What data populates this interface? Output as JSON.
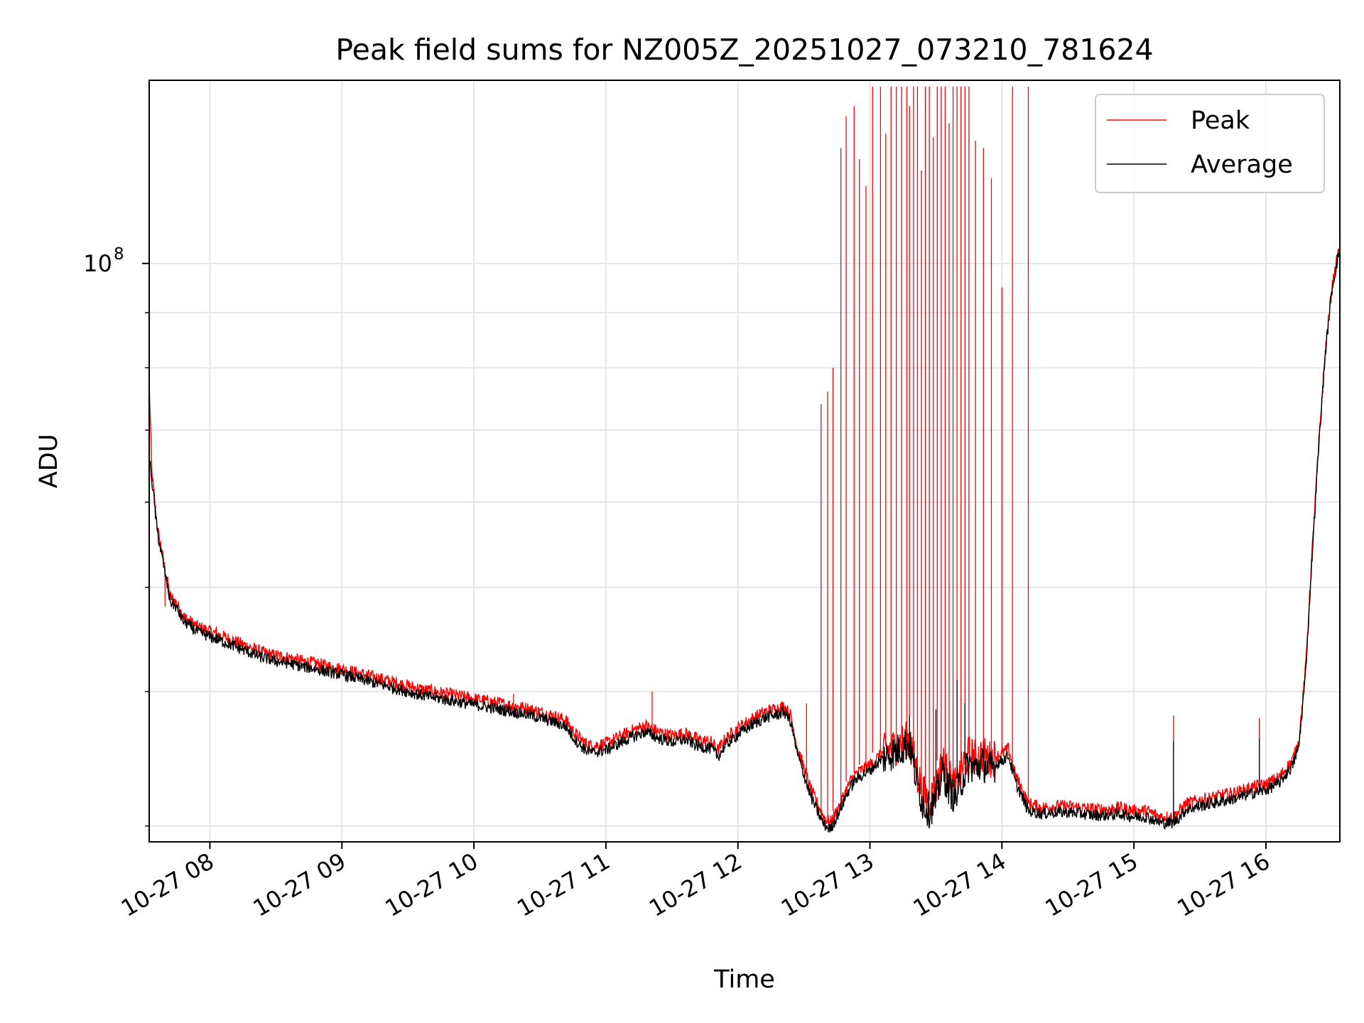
{
  "chart_data": {
    "type": "line",
    "title": "Peak field sums for NZ005Z_20251027_073210_781624",
    "xlabel": "Time",
    "ylabel": "ADU",
    "yscale": "log",
    "grid": true,
    "legend_position": "top-right",
    "x_unit": "hours since 2025-10-27 00:00",
    "xlim": [
      7.54,
      16.56
    ],
    "ylim": [
      29000000,
      148000000
    ],
    "x_ticks": [
      {
        "value": 8,
        "label": "10-27 08"
      },
      {
        "value": 9,
        "label": "10-27 09"
      },
      {
        "value": 10,
        "label": "10-27 10"
      },
      {
        "value": 11,
        "label": "10-27 11"
      },
      {
        "value": 12,
        "label": "10-27 12"
      },
      {
        "value": 13,
        "label": "10-27 13"
      },
      {
        "value": 14,
        "label": "10-27 14"
      },
      {
        "value": 15,
        "label": "10-27 15"
      },
      {
        "value": 16,
        "label": "10-27 16"
      }
    ],
    "y_major_tick": {
      "value": 100000000,
      "label_base": "10",
      "label_exp": "8"
    },
    "y_minor_ticks": [
      30000000,
      40000000,
      50000000,
      60000000,
      70000000,
      80000000,
      90000000
    ],
    "series": [
      {
        "name": "Peak",
        "color": "#ff0000",
        "x": [
          7.54,
          7.56,
          7.6,
          7.66,
          7.7,
          7.74,
          7.8,
          7.9,
          8.0,
          8.1,
          8.2,
          8.3,
          8.4,
          8.5,
          8.6,
          8.7,
          8.8,
          8.9,
          9.0,
          9.1,
          9.2,
          9.3,
          9.4,
          9.5,
          9.6,
          9.7,
          9.8,
          9.9,
          10.0,
          10.1,
          10.2,
          10.3,
          10.4,
          10.5,
          10.6,
          10.7,
          10.75,
          10.8,
          10.85,
          10.9,
          11.0,
          11.1,
          11.2,
          11.3,
          11.4,
          11.5,
          11.6,
          11.7,
          11.8,
          11.85,
          11.9,
          12.0,
          12.1,
          12.2,
          12.3,
          12.35,
          12.4,
          12.45,
          12.5,
          12.55,
          12.6,
          12.65,
          12.7,
          12.75,
          12.8,
          12.85,
          12.9,
          13.0,
          13.1,
          13.2,
          13.3,
          13.35,
          13.4,
          13.45,
          13.5,
          13.55,
          13.6,
          13.65,
          13.7,
          13.75,
          13.8,
          13.85,
          13.9,
          14.0,
          14.05,
          14.1,
          14.2,
          14.3,
          14.4,
          14.5,
          14.6,
          14.7,
          14.8,
          14.9,
          15.0,
          15.1,
          15.2,
          15.3,
          15.4,
          15.5,
          15.6,
          15.7,
          15.8,
          15.9,
          16.0,
          16.1,
          16.2,
          16.25,
          16.3,
          16.35,
          16.4,
          16.45,
          16.5,
          16.56
        ],
        "y": [
          78000000,
          64000000,
          57000000,
          52000000,
          49000000,
          48500000,
          47000000,
          46000000,
          45500000,
          45000000,
          44500000,
          44000000,
          43500000,
          43200000,
          43000000,
          42700000,
          42500000,
          42200000,
          42000000,
          41700000,
          41400000,
          41100000,
          40800000,
          40500000,
          40200000,
          40000000,
          39800000,
          39600000,
          39400000,
          39200000,
          39000000,
          38800000,
          38600000,
          38300000,
          38000000,
          37600000,
          36800000,
          36200000,
          35800000,
          35600000,
          35800000,
          36300000,
          36800000,
          37200000,
          36700000,
          36400000,
          36600000,
          36100000,
          35900000,
          35300000,
          36100000,
          37000000,
          37700000,
          38300000,
          38600000,
          38800000,
          38000000,
          35500000,
          34000000,
          32500000,
          31500000,
          30600000,
          30200000,
          31000000,
          32000000,
          33000000,
          33600000,
          34200000,
          35100000,
          35600000,
          36200000,
          34000000,
          32200000,
          31700000,
          32500000,
          34500000,
          33300000,
          32600000,
          34000000,
          35000000,
          34700000,
          35000000,
          34600000,
          35000000,
          35400000,
          33500000,
          31500000,
          31200000,
          31300000,
          31300000,
          31200000,
          31100000,
          31100000,
          31200000,
          31000000,
          31000000,
          30600000,
          30600000,
          31500000,
          31700000,
          31900000,
          32100000,
          32300000,
          32600000,
          32800000,
          33300000,
          34500000,
          36000000,
          42000000,
          54000000,
          68000000,
          83000000,
          95000000,
          104000000
        ],
        "spikes": [
          {
            "x": 7.66,
            "y": 48000000
          },
          {
            "x": 8.05,
            "y": 46000000
          },
          {
            "x": 8.3,
            "y": 44000000
          },
          {
            "x": 8.7,
            "y": 43000000
          },
          {
            "x": 9.35,
            "y": 40500000
          },
          {
            "x": 9.95,
            "y": 40000000
          },
          {
            "x": 10.3,
            "y": 39800000
          },
          {
            "x": 11.35,
            "y": 40000000
          },
          {
            "x": 12.52,
            "y": 39000000
          },
          {
            "x": 12.63,
            "y": 74000000
          },
          {
            "x": 12.68,
            "y": 76000000
          },
          {
            "x": 12.72,
            "y": 80000000
          },
          {
            "x": 12.78,
            "y": 128000000
          },
          {
            "x": 12.82,
            "y": 137000000
          },
          {
            "x": 12.88,
            "y": 140000000
          },
          {
            "x": 12.92,
            "y": 125000000
          },
          {
            "x": 12.97,
            "y": 118000000
          },
          {
            "x": 13.02,
            "y": 146000000
          },
          {
            "x": 13.08,
            "y": 146000000
          },
          {
            "x": 13.12,
            "y": 132000000
          },
          {
            "x": 13.16,
            "y": 146000000
          },
          {
            "x": 13.2,
            "y": 146000000
          },
          {
            "x": 13.24,
            "y": 146000000
          },
          {
            "x": 13.28,
            "y": 146000000
          },
          {
            "x": 13.3,
            "y": 140000000
          },
          {
            "x": 13.33,
            "y": 146000000
          },
          {
            "x": 13.36,
            "y": 146000000
          },
          {
            "x": 13.39,
            "y": 122000000
          },
          {
            "x": 13.42,
            "y": 146000000
          },
          {
            "x": 13.45,
            "y": 146000000
          },
          {
            "x": 13.48,
            "y": 131000000
          },
          {
            "x": 13.51,
            "y": 146000000
          },
          {
            "x": 13.54,
            "y": 146000000
          },
          {
            "x": 13.57,
            "y": 146000000
          },
          {
            "x": 13.6,
            "y": 135000000
          },
          {
            "x": 13.63,
            "y": 146000000
          },
          {
            "x": 13.66,
            "y": 146000000
          },
          {
            "x": 13.69,
            "y": 146000000
          },
          {
            "x": 13.72,
            "y": 146000000
          },
          {
            "x": 13.75,
            "y": 146000000
          },
          {
            "x": 13.8,
            "y": 130000000
          },
          {
            "x": 13.86,
            "y": 128000000
          },
          {
            "x": 13.92,
            "y": 120000000
          },
          {
            "x": 14.0,
            "y": 95000000
          },
          {
            "x": 14.08,
            "y": 146000000
          },
          {
            "x": 14.2,
            "y": 146000000
          },
          {
            "x": 15.3,
            "y": 38000000
          },
          {
            "x": 15.95,
            "y": 37800000
          }
        ]
      },
      {
        "name": "Average",
        "color": "#000000",
        "x": [
          7.54,
          7.56,
          7.6,
          7.66,
          7.7,
          7.74,
          7.8,
          7.9,
          8.0,
          8.1,
          8.2,
          8.3,
          8.4,
          8.5,
          8.6,
          8.7,
          8.8,
          8.9,
          9.0,
          9.1,
          9.2,
          9.3,
          9.4,
          9.5,
          9.6,
          9.7,
          9.8,
          9.9,
          10.0,
          10.1,
          10.2,
          10.3,
          10.4,
          10.5,
          10.6,
          10.7,
          10.75,
          10.8,
          10.85,
          10.9,
          11.0,
          11.1,
          11.2,
          11.3,
          11.4,
          11.5,
          11.6,
          11.7,
          11.8,
          11.85,
          11.9,
          12.0,
          12.1,
          12.2,
          12.3,
          12.35,
          12.4,
          12.45,
          12.5,
          12.55,
          12.6,
          12.65,
          12.7,
          12.75,
          12.8,
          12.85,
          12.9,
          13.0,
          13.1,
          13.2,
          13.3,
          13.35,
          13.4,
          13.45,
          13.5,
          13.55,
          13.6,
          13.65,
          13.7,
          13.75,
          13.8,
          13.85,
          13.9,
          14.0,
          14.05,
          14.1,
          14.2,
          14.3,
          14.4,
          14.5,
          14.6,
          14.7,
          14.8,
          14.9,
          15.0,
          15.1,
          15.2,
          15.3,
          15.4,
          15.5,
          15.6,
          15.7,
          15.8,
          15.9,
          16.0,
          16.1,
          16.2,
          16.25,
          16.3,
          16.35,
          16.4,
          16.45,
          16.5,
          16.56
        ],
        "y": [
          66000000,
          63000000,
          56500000,
          51500000,
          48500000,
          48000000,
          46500000,
          45500000,
          45000000,
          44500000,
          44000000,
          43500000,
          43000000,
          42700000,
          42500000,
          42200000,
          42000000,
          41700000,
          41500000,
          41200000,
          40900000,
          40600000,
          40300000,
          40000000,
          39700000,
          39500000,
          39300000,
          39100000,
          38900000,
          38700000,
          38500000,
          38300000,
          38100000,
          37800000,
          37500000,
          37100000,
          36300000,
          35700000,
          35300000,
          35100000,
          35300000,
          35800000,
          36300000,
          36700000,
          36200000,
          35900000,
          36100000,
          35600000,
          35400000,
          34800000,
          35600000,
          36500000,
          37200000,
          37800000,
          38100000,
          38300000,
          37500000,
          35000000,
          33500000,
          32000000,
          31000000,
          30100000,
          29800000,
          30600000,
          31600000,
          32600000,
          33200000,
          33800000,
          34700000,
          35200000,
          35800000,
          33200000,
          31500000,
          31000000,
          31700000,
          33700000,
          32500000,
          31800000,
          33200000,
          34200000,
          33900000,
          34300000,
          33900000,
          34500000,
          34900000,
          33000000,
          31000000,
          30800000,
          30900000,
          30900000,
          30800000,
          30700000,
          30700000,
          30800000,
          30600000,
          30600000,
          30200000,
          30200000,
          31100000,
          31300000,
          31500000,
          31700000,
          31900000,
          32200000,
          32400000,
          32900000,
          34100000,
          35600000,
          41500000,
          53500000,
          67500000,
          82500000,
          94500000,
          103500000
        ],
        "spikes": [
          {
            "x": 13.66,
            "y": 41000000
          },
          {
            "x": 13.72,
            "y": 39000000
          },
          {
            "x": 13.5,
            "y": 38500000
          },
          {
            "x": 13.3,
            "y": 38000000
          },
          {
            "x": 15.3,
            "y": 36000000
          },
          {
            "x": 15.95,
            "y": 36200000
          }
        ]
      }
    ]
  }
}
